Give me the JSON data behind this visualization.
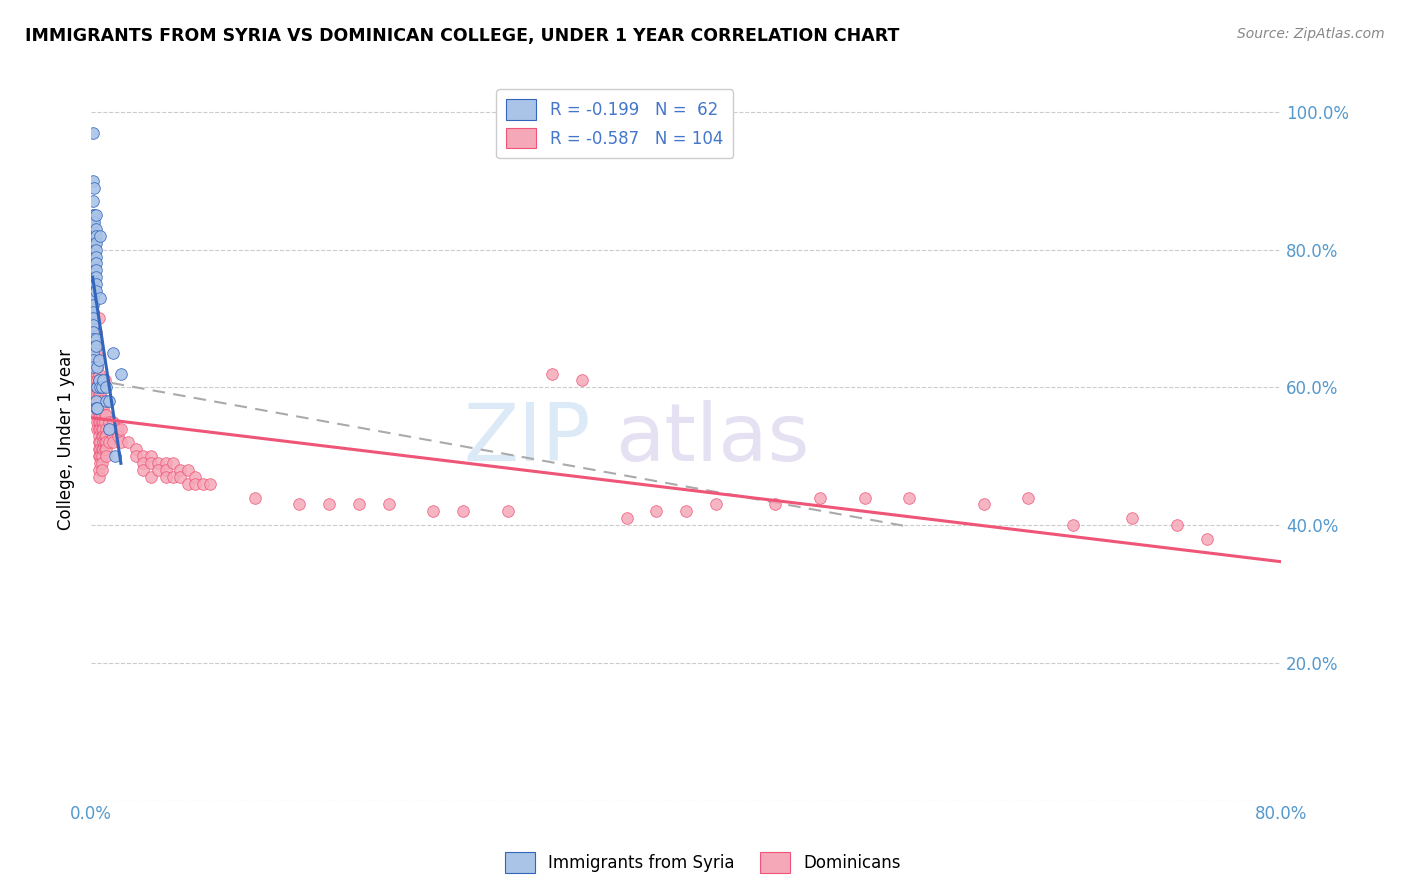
{
  "title": "IMMIGRANTS FROM SYRIA VS DOMINICAN COLLEGE, UNDER 1 YEAR CORRELATION CHART",
  "source": "Source: ZipAtlas.com",
  "ylabel": "College, Under 1 year",
  "xlim": [
    0.0,
    0.8
  ],
  "ylim": [
    0.0,
    1.05
  ],
  "x_ticks": [
    0.0,
    0.1,
    0.2,
    0.3,
    0.4,
    0.5,
    0.6,
    0.7,
    0.8
  ],
  "y_ticks_right": [
    0.0,
    0.2,
    0.4,
    0.6,
    0.8,
    1.0
  ],
  "color_syria": "#aac4e8",
  "color_dominican": "#f5a8b8",
  "trendline_syria_color": "#3366bb",
  "trendline_dominican_color": "#ee5577",
  "trendline_dashed_color": "#aaaaaa",
  "watermark": "ZIPatlas",
  "syria_points": [
    [
      0.001,
      0.97
    ],
    [
      0.001,
      0.9
    ],
    [
      0.001,
      0.87
    ],
    [
      0.001,
      0.85
    ],
    [
      0.001,
      0.84
    ],
    [
      0.001,
      0.83
    ],
    [
      0.001,
      0.82
    ],
    [
      0.001,
      0.81
    ],
    [
      0.001,
      0.8
    ],
    [
      0.001,
      0.79
    ],
    [
      0.001,
      0.78
    ],
    [
      0.001,
      0.77
    ],
    [
      0.001,
      0.76
    ],
    [
      0.001,
      0.75
    ],
    [
      0.001,
      0.74
    ],
    [
      0.001,
      0.73
    ],
    [
      0.001,
      0.72
    ],
    [
      0.001,
      0.71
    ],
    [
      0.001,
      0.7
    ],
    [
      0.001,
      0.69
    ],
    [
      0.001,
      0.68
    ],
    [
      0.001,
      0.67
    ],
    [
      0.001,
      0.66
    ],
    [
      0.001,
      0.65
    ],
    [
      0.001,
      0.64
    ],
    [
      0.001,
      0.63
    ],
    [
      0.002,
      0.89
    ],
    [
      0.002,
      0.85
    ],
    [
      0.002,
      0.84
    ],
    [
      0.003,
      0.85
    ],
    [
      0.003,
      0.83
    ],
    [
      0.003,
      0.82
    ],
    [
      0.003,
      0.81
    ],
    [
      0.003,
      0.8
    ],
    [
      0.003,
      0.79
    ],
    [
      0.003,
      0.78
    ],
    [
      0.003,
      0.77
    ],
    [
      0.003,
      0.76
    ],
    [
      0.003,
      0.75
    ],
    [
      0.003,
      0.74
    ],
    [
      0.003,
      0.67
    ],
    [
      0.003,
      0.66
    ],
    [
      0.003,
      0.58
    ],
    [
      0.003,
      0.57
    ],
    [
      0.004,
      0.63
    ],
    [
      0.004,
      0.6
    ],
    [
      0.004,
      0.57
    ],
    [
      0.005,
      0.64
    ],
    [
      0.005,
      0.61
    ],
    [
      0.006,
      0.82
    ],
    [
      0.006,
      0.73
    ],
    [
      0.006,
      0.6
    ],
    [
      0.007,
      0.6
    ],
    [
      0.008,
      0.61
    ],
    [
      0.01,
      0.58
    ],
    [
      0.01,
      0.6
    ],
    [
      0.012,
      0.54
    ],
    [
      0.012,
      0.58
    ],
    [
      0.015,
      0.65
    ],
    [
      0.016,
      0.5
    ],
    [
      0.02,
      0.62
    ]
  ],
  "dominican_points": [
    [
      0.001,
      0.69
    ],
    [
      0.001,
      0.67
    ],
    [
      0.001,
      0.66
    ],
    [
      0.002,
      0.7
    ],
    [
      0.002,
      0.68
    ],
    [
      0.002,
      0.67
    ],
    [
      0.002,
      0.66
    ],
    [
      0.002,
      0.65
    ],
    [
      0.002,
      0.64
    ],
    [
      0.002,
      0.63
    ],
    [
      0.002,
      0.62
    ],
    [
      0.003,
      0.68
    ],
    [
      0.003,
      0.67
    ],
    [
      0.003,
      0.66
    ],
    [
      0.003,
      0.65
    ],
    [
      0.003,
      0.64
    ],
    [
      0.003,
      0.63
    ],
    [
      0.003,
      0.62
    ],
    [
      0.003,
      0.61
    ],
    [
      0.003,
      0.6
    ],
    [
      0.003,
      0.59
    ],
    [
      0.003,
      0.58
    ],
    [
      0.003,
      0.57
    ],
    [
      0.004,
      0.64
    ],
    [
      0.004,
      0.63
    ],
    [
      0.004,
      0.62
    ],
    [
      0.004,
      0.61
    ],
    [
      0.004,
      0.6
    ],
    [
      0.004,
      0.59
    ],
    [
      0.004,
      0.58
    ],
    [
      0.004,
      0.57
    ],
    [
      0.004,
      0.56
    ],
    [
      0.004,
      0.55
    ],
    [
      0.004,
      0.54
    ],
    [
      0.005,
      0.7
    ],
    [
      0.005,
      0.62
    ],
    [
      0.005,
      0.61
    ],
    [
      0.005,
      0.6
    ],
    [
      0.005,
      0.59
    ],
    [
      0.005,
      0.58
    ],
    [
      0.005,
      0.57
    ],
    [
      0.005,
      0.56
    ],
    [
      0.005,
      0.55
    ],
    [
      0.005,
      0.54
    ],
    [
      0.005,
      0.53
    ],
    [
      0.005,
      0.52
    ],
    [
      0.005,
      0.51
    ],
    [
      0.005,
      0.5
    ],
    [
      0.005,
      0.48
    ],
    [
      0.005,
      0.47
    ],
    [
      0.006,
      0.6
    ],
    [
      0.006,
      0.59
    ],
    [
      0.006,
      0.58
    ],
    [
      0.006,
      0.57
    ],
    [
      0.006,
      0.56
    ],
    [
      0.006,
      0.55
    ],
    [
      0.006,
      0.54
    ],
    [
      0.006,
      0.52
    ],
    [
      0.006,
      0.51
    ],
    [
      0.006,
      0.5
    ],
    [
      0.006,
      0.49
    ],
    [
      0.007,
      0.6
    ],
    [
      0.007,
      0.58
    ],
    [
      0.007,
      0.57
    ],
    [
      0.007,
      0.56
    ],
    [
      0.007,
      0.55
    ],
    [
      0.007,
      0.54
    ],
    [
      0.007,
      0.53
    ],
    [
      0.007,
      0.51
    ],
    [
      0.007,
      0.5
    ],
    [
      0.007,
      0.49
    ],
    [
      0.007,
      0.48
    ],
    [
      0.008,
      0.57
    ],
    [
      0.008,
      0.55
    ],
    [
      0.008,
      0.54
    ],
    [
      0.008,
      0.53
    ],
    [
      0.008,
      0.52
    ],
    [
      0.008,
      0.51
    ],
    [
      0.009,
      0.61
    ],
    [
      0.009,
      0.56
    ],
    [
      0.009,
      0.55
    ],
    [
      0.009,
      0.53
    ],
    [
      0.009,
      0.52
    ],
    [
      0.009,
      0.51
    ],
    [
      0.01,
      0.56
    ],
    [
      0.01,
      0.54
    ],
    [
      0.01,
      0.53
    ],
    [
      0.01,
      0.52
    ],
    [
      0.01,
      0.51
    ],
    [
      0.01,
      0.5
    ],
    [
      0.012,
      0.55
    ],
    [
      0.012,
      0.54
    ],
    [
      0.012,
      0.52
    ],
    [
      0.015,
      0.55
    ],
    [
      0.015,
      0.53
    ],
    [
      0.015,
      0.52
    ],
    [
      0.018,
      0.54
    ],
    [
      0.018,
      0.53
    ],
    [
      0.02,
      0.54
    ],
    [
      0.02,
      0.52
    ],
    [
      0.025,
      0.52
    ],
    [
      0.03,
      0.51
    ],
    [
      0.03,
      0.5
    ],
    [
      0.035,
      0.5
    ],
    [
      0.035,
      0.49
    ],
    [
      0.035,
      0.48
    ],
    [
      0.04,
      0.5
    ],
    [
      0.04,
      0.49
    ],
    [
      0.04,
      0.47
    ],
    [
      0.045,
      0.49
    ],
    [
      0.045,
      0.48
    ],
    [
      0.05,
      0.49
    ],
    [
      0.05,
      0.48
    ],
    [
      0.05,
      0.47
    ],
    [
      0.055,
      0.49
    ],
    [
      0.055,
      0.47
    ],
    [
      0.06,
      0.48
    ],
    [
      0.06,
      0.47
    ],
    [
      0.065,
      0.48
    ],
    [
      0.065,
      0.46
    ],
    [
      0.07,
      0.47
    ],
    [
      0.07,
      0.46
    ],
    [
      0.075,
      0.46
    ],
    [
      0.08,
      0.46
    ],
    [
      0.11,
      0.44
    ],
    [
      0.14,
      0.43
    ],
    [
      0.16,
      0.43
    ],
    [
      0.18,
      0.43
    ],
    [
      0.2,
      0.43
    ],
    [
      0.23,
      0.42
    ],
    [
      0.25,
      0.42
    ],
    [
      0.28,
      0.42
    ],
    [
      0.31,
      0.62
    ],
    [
      0.33,
      0.61
    ],
    [
      0.36,
      0.41
    ],
    [
      0.38,
      0.42
    ],
    [
      0.4,
      0.42
    ],
    [
      0.42,
      0.43
    ],
    [
      0.46,
      0.43
    ],
    [
      0.49,
      0.44
    ],
    [
      0.52,
      0.44
    ],
    [
      0.55,
      0.44
    ],
    [
      0.6,
      0.43
    ],
    [
      0.63,
      0.44
    ],
    [
      0.66,
      0.4
    ],
    [
      0.7,
      0.41
    ],
    [
      0.73,
      0.4
    ],
    [
      0.75,
      0.38
    ]
  ]
}
